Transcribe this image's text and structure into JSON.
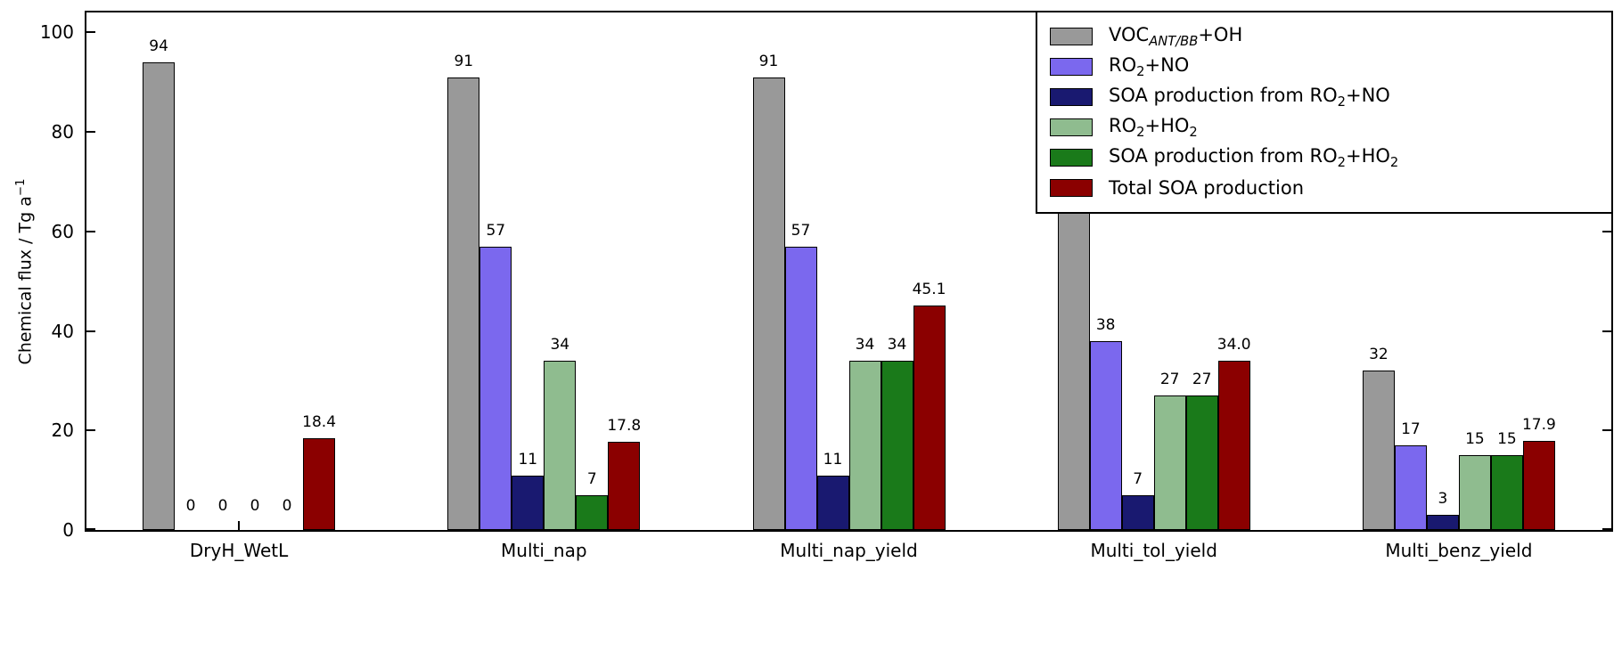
{
  "figure": {
    "background": "#ffffff",
    "axis_color": "#000000"
  },
  "chart_data": {
    "type": "bar",
    "title": "",
    "xlabel": "",
    "ylabel": "Chemical flux / Tg a⁻¹",
    "ylabel_segments": [
      {
        "t": "Chemical flux / Tg a"
      },
      {
        "sup": "−1"
      }
    ],
    "ylim": [
      0,
      104
    ],
    "yticks": [
      0,
      20,
      40,
      60,
      80,
      100
    ],
    "grid": false,
    "categories": [
      "DryH_WetL",
      "Multi_nap",
      "Multi_nap_yield",
      "Multi_tol_yield",
      "Multi_benz_yield"
    ],
    "series": [
      {
        "name": "VOC_ANT/BB+OH",
        "color": "#999999",
        "values": [
          94,
          91,
          91,
          65,
          32
        ],
        "labels": [
          "94",
          "91",
          "91",
          "65",
          "32"
        ],
        "label_segments": [
          {
            "t": "VOC"
          },
          {
            "sub": "ANT/BB",
            "italic": true
          },
          {
            "t": "+OH"
          }
        ]
      },
      {
        "name": "RO2+NO",
        "color": "#7b68ee",
        "values": [
          0,
          57,
          57,
          38,
          17
        ],
        "labels": [
          "0",
          "57",
          "57",
          "38",
          "17"
        ],
        "label_segments": [
          {
            "t": "RO"
          },
          {
            "sub": "2"
          },
          {
            "t": "+NO"
          }
        ]
      },
      {
        "name": "SOA production from RO2+NO",
        "color": "#191970",
        "values": [
          0,
          11,
          11,
          7,
          3
        ],
        "labels": [
          "0",
          "11",
          "11",
          "7",
          "3"
        ],
        "label_segments": [
          {
            "t": "SOA production from RO"
          },
          {
            "sub": "2"
          },
          {
            "t": "+NO"
          }
        ]
      },
      {
        "name": "RO2+HO2",
        "color": "#8fbc8f",
        "values": [
          0,
          34,
          34,
          27,
          15
        ],
        "labels": [
          "0",
          "34",
          "34",
          "27",
          "15"
        ],
        "label_segments": [
          {
            "t": "RO"
          },
          {
            "sub": "2"
          },
          {
            "t": "+HO"
          },
          {
            "sub": "2"
          }
        ]
      },
      {
        "name": "SOA production from RO2+HO2",
        "color": "#1a7a1a",
        "values": [
          0,
          7,
          34,
          27,
          15
        ],
        "labels": [
          "0",
          "7",
          "34",
          "27",
          "15"
        ],
        "label_segments": [
          {
            "t": "SOA production from RO"
          },
          {
            "sub": "2"
          },
          {
            "t": "+HO"
          },
          {
            "sub": "2"
          }
        ]
      },
      {
        "name": "Total SOA production",
        "color": "#8b0000",
        "values": [
          18.4,
          17.8,
          45.1,
          34.0,
          17.9
        ],
        "labels": [
          "18.4",
          "17.8",
          "45.1",
          "34.0",
          "17.9"
        ],
        "label_segments": [
          {
            "t": "Total SOA production"
          }
        ]
      }
    ],
    "legend_position": "upper right"
  }
}
